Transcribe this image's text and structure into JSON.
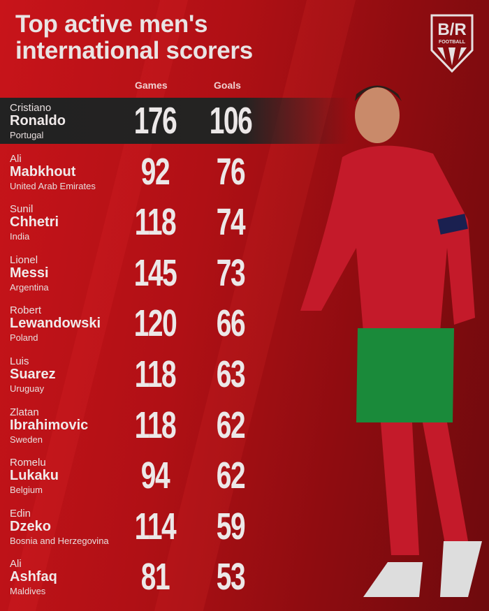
{
  "title_line1": "Top active men's",
  "title_line2": "international scorers",
  "logo": {
    "text": "B/R",
    "sub": "FOOTBALL"
  },
  "columns": {
    "games": "Games",
    "goals": "Goals"
  },
  "colors": {
    "background": "#b01015",
    "highlight_row": "#242322",
    "text": "#ece8e8"
  },
  "players": [
    {
      "first": "Cristiano",
      "last": "Ronaldo",
      "country": "Portugal",
      "games": "176",
      "goals": "106"
    },
    {
      "first": "Ali",
      "last": "Mabkhout",
      "country": "United Arab Emirates",
      "games": "92",
      "goals": "76"
    },
    {
      "first": "Sunil",
      "last": "Chhetri",
      "country": "India",
      "games": "118",
      "goals": "74"
    },
    {
      "first": "Lionel",
      "last": "Messi",
      "country": "Argentina",
      "games": "145",
      "goals": "73"
    },
    {
      "first": "Robert",
      "last": "Lewandowski",
      "country": "Poland",
      "games": "120",
      "goals": "66"
    },
    {
      "first": "Luis",
      "last": "Suarez",
      "country": "Uruguay",
      "games": "118",
      "goals": "63"
    },
    {
      "first": "Zlatan",
      "last": "Ibrahimovic",
      "country": "Sweden",
      "games": "118",
      "goals": "62"
    },
    {
      "first": "Romelu",
      "last": "Lukaku",
      "country": "Belgium",
      "games": "94",
      "goals": "62"
    },
    {
      "first": "Edin",
      "last": "Dzeko",
      "country": "Bosnia and Herzegovina",
      "games": "114",
      "goals": "59"
    },
    {
      "first": "Ali",
      "last": "Ashfaq",
      "country": "Maldives",
      "games": "81",
      "goals": "53"
    }
  ]
}
